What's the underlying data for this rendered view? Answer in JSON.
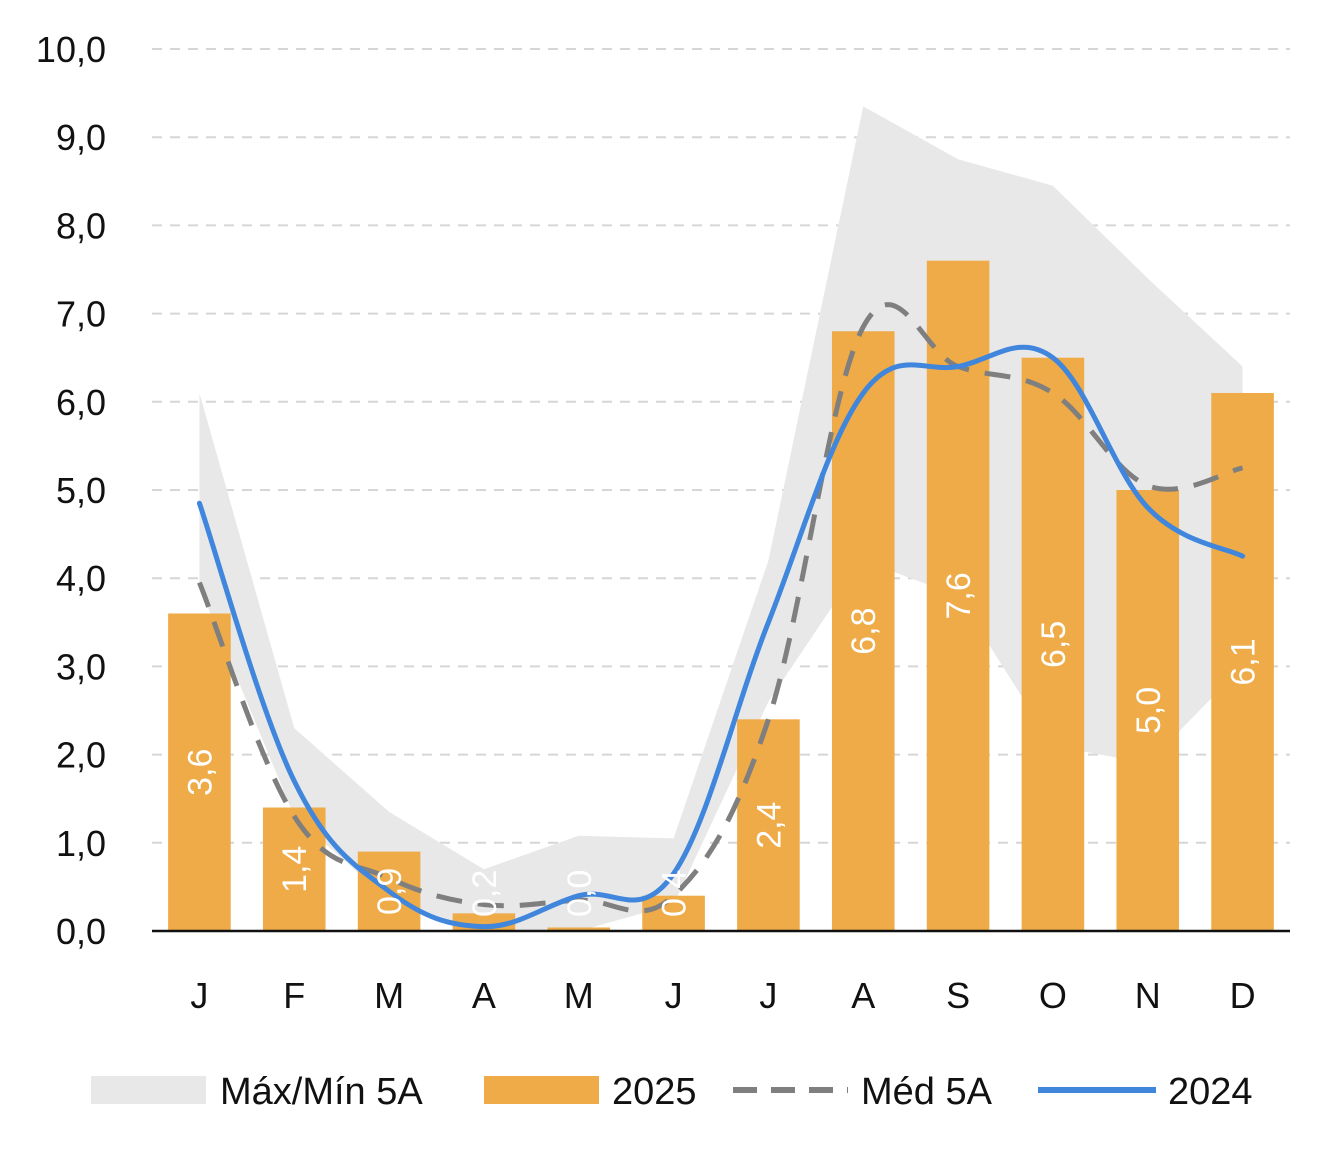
{
  "chart_data": {
    "type": "bar",
    "categories": [
      "J",
      "F",
      "M",
      "A",
      "M",
      "J",
      "J",
      "A",
      "S",
      "O",
      "N",
      "D"
    ],
    "ylim": [
      0,
      10
    ],
    "yticks": [
      "0,0",
      "1,0",
      "2,0",
      "3,0",
      "4,0",
      "5,0",
      "6,0",
      "7,0",
      "8,0",
      "9,0",
      "10,0"
    ],
    "grid": true,
    "legend_position": "bottom",
    "series": [
      {
        "name": "Máx/Mín 5A",
        "type": "range",
        "max": [
          6.1,
          2.3,
          1.35,
          0.7,
          1.08,
          1.05,
          4.2,
          9.35,
          8.75,
          8.45,
          7.4,
          6.4
        ],
        "min": [
          3.9,
          1.3,
          0.35,
          0.0,
          0.0,
          0.3,
          2.6,
          4.2,
          3.8,
          2.1,
          1.9,
          3.0
        ],
        "color": "#e8e8e8"
      },
      {
        "name": "2025",
        "type": "bar",
        "values": [
          3.6,
          1.4,
          0.9,
          0.2,
          0.04,
          0.4,
          2.4,
          6.8,
          7.6,
          6.5,
          5.0,
          6.1
        ],
        "labels": [
          "3,6",
          "1,4",
          "0,9",
          "0,2",
          "0,0",
          "0,4",
          "2,4",
          "6,8",
          "7,6",
          "6,5",
          "5,0",
          "6,1"
        ],
        "color": "#eeab47"
      },
      {
        "name": "Méd 5A",
        "type": "line",
        "style": "dashed",
        "values": [
          3.95,
          1.3,
          0.6,
          0.3,
          0.35,
          0.4,
          2.4,
          6.85,
          6.4,
          6.1,
          5.05,
          5.25
        ],
        "color": "#7f7f7f"
      },
      {
        "name": "2024",
        "type": "line",
        "style": "solid",
        "values": [
          4.85,
          1.7,
          0.45,
          0.05,
          0.4,
          0.65,
          3.5,
          6.1,
          6.4,
          6.5,
          4.8,
          4.25
        ],
        "color": "#3f86dc"
      }
    ]
  }
}
